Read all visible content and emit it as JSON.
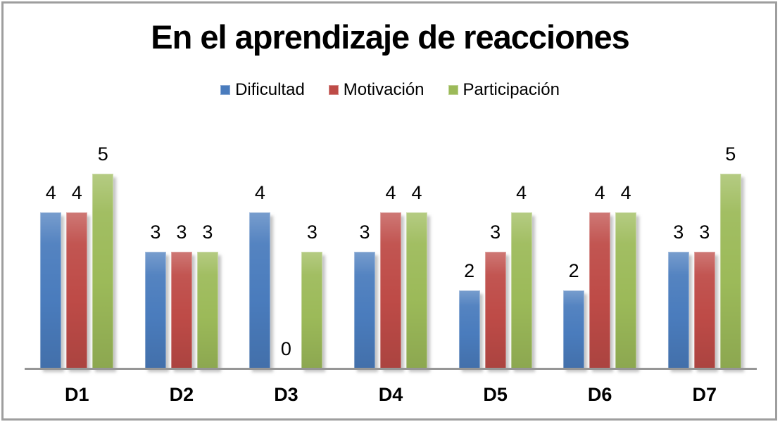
{
  "frame": {
    "border_color": "#9e9e9e",
    "background": "#ffffff"
  },
  "chart_data": {
    "type": "bar",
    "title": "En el aprendizaje de reacciones",
    "categories": [
      "D1",
      "D2",
      "D3",
      "D4",
      "D5",
      "D6",
      "D7"
    ],
    "series": [
      {
        "name": "Dificultad",
        "color": "#4a7cbd",
        "values": [
          4,
          3,
          4,
          3,
          2,
          2,
          3
        ]
      },
      {
        "name": "Motivación",
        "color": "#be4b47",
        "values": [
          4,
          3,
          0,
          4,
          3,
          4,
          3
        ]
      },
      {
        "name": "Participación",
        "color": "#9cba59",
        "values": [
          5,
          3,
          3,
          4,
          4,
          4,
          5
        ]
      }
    ],
    "ylim": [
      0,
      5
    ],
    "gridlines": false,
    "y_axis_visible": false,
    "data_labels": true,
    "legend_position": "top",
    "axis_line_color": "#969696"
  }
}
